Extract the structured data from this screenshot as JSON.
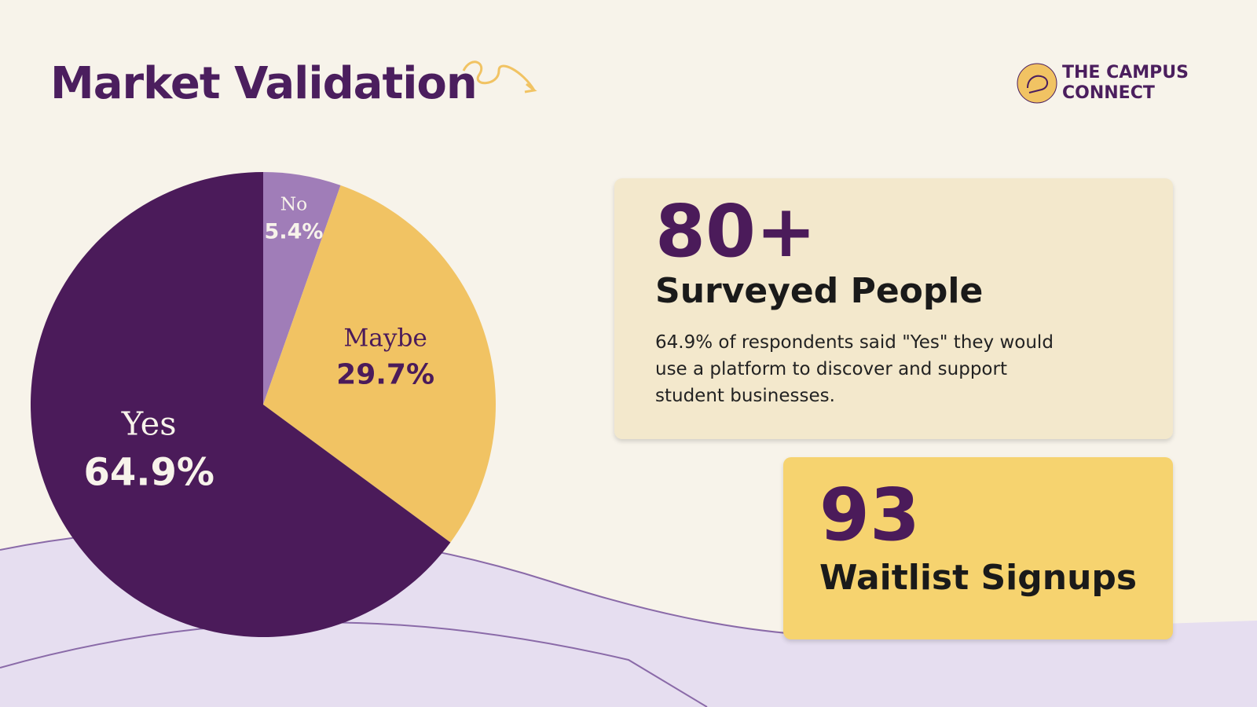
{
  "chart_data": {
    "type": "pie",
    "title": "Market Validation",
    "categories": [
      "No",
      "Maybe",
      "Yes"
    ],
    "values": [
      5.4,
      29.7,
      64.9
    ],
    "value_labels": [
      "5.4%",
      "29.7%",
      "64.9%"
    ],
    "colors": [
      "#a07db8",
      "#f1c363",
      "#4b1b5a"
    ],
    "label_colors": [
      "#f7f3ea",
      "#4b1b5a",
      "#f7f3ea"
    ]
  },
  "logo": {
    "line1": "THE CAMPUS",
    "line2": "CONNECT"
  },
  "cards": [
    {
      "stat": "80+",
      "label": "Surveyed People",
      "text": "64.9% of respondents said \"Yes\" they would use a platform to discover and support student businesses."
    },
    {
      "stat": "93",
      "label": "Waitlist Signups"
    }
  ]
}
